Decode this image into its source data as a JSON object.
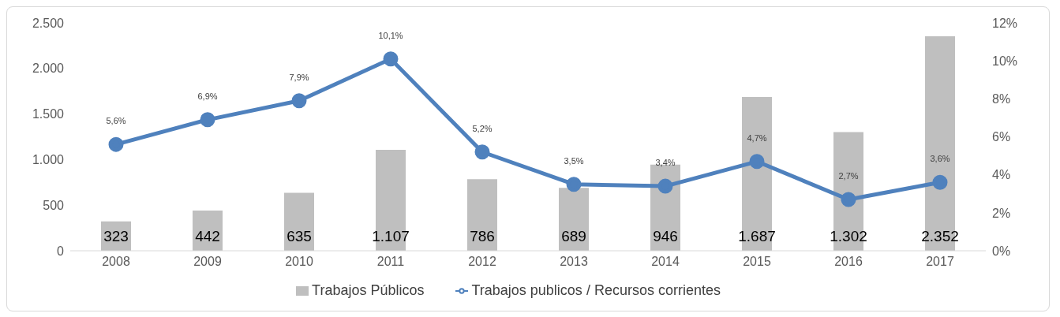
{
  "chart_data": {
    "type": "bar",
    "categories": [
      "2008",
      "2009",
      "2010",
      "2011",
      "2012",
      "2013",
      "2014",
      "2015",
      "2016",
      "2017"
    ],
    "series": [
      {
        "name": "Trabajos Públicos",
        "color": "#bfbfbf",
        "values": [
          323,
          442,
          635,
          1107,
          786,
          689,
          946,
          1687,
          1302,
          2352
        ],
        "value_labels": [
          "323",
          "442",
          "635",
          "1.107",
          "786",
          "689",
          "946",
          "1.687",
          "1.302",
          "2.352"
        ]
      },
      {
        "type": "line",
        "axis": "y2",
        "name": "Trabajos publicos / Recursos corrientes",
        "color": "#4f81bd",
        "values": [
          5.6,
          6.9,
          7.9,
          10.1,
          5.2,
          3.5,
          3.4,
          4.7,
          2.7,
          3.6
        ],
        "value_labels": [
          "5,6%",
          "6,9%",
          "7,9%",
          "10,1%",
          "5,2%",
          "3,5%",
          "3,4%",
          "4,7%",
          "2,7%",
          "3,6%"
        ]
      }
    ],
    "ylim": [
      0,
      2500
    ],
    "yticks": [
      0,
      500,
      {
        "value": 1000,
        "label": "1.000"
      },
      {
        "value": 1500,
        "label": "1.500"
      },
      {
        "value": 2000,
        "label": "2.000"
      },
      {
        "value": 2500,
        "label": "2.500"
      }
    ],
    "y2lim": [
      0,
      12
    ],
    "y2ticks": [
      {
        "value": 0,
        "label": "0%"
      },
      {
        "value": 2,
        "label": "2%"
      },
      {
        "value": 4,
        "label": "4%"
      },
      {
        "value": 6,
        "label": "6%"
      },
      {
        "value": 8,
        "label": "8%"
      },
      {
        "value": 10,
        "label": "10%"
      },
      {
        "value": 12,
        "label": "12%"
      }
    ],
    "grid": false,
    "legend": "bottom",
    "marker": "circle",
    "line_style": "solid"
  }
}
